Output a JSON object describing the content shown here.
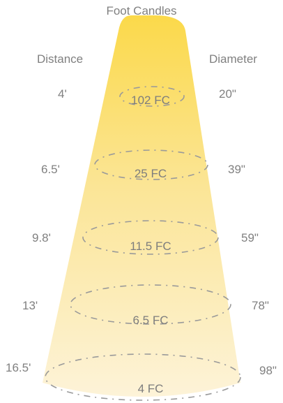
{
  "title": "Foot Candles",
  "headers": {
    "distance": "Distance",
    "diameter": "Diameter"
  },
  "colors": {
    "beam_top": "#fbd94a",
    "beam_bottom": "#fdf1cf",
    "ring_stroke": "#9a9a9a",
    "text": "#808080"
  },
  "levels": [
    {
      "distance": "4'",
      "foot_candles": "102 FC",
      "diameter": "20\""
    },
    {
      "distance": "6.5'",
      "foot_candles": "25 FC",
      "diameter": "39\""
    },
    {
      "distance": "9.8'",
      "foot_candles": "11.5 FC",
      "diameter": "59\""
    },
    {
      "distance": "13'",
      "foot_candles": "6.5 FC",
      "diameter": "78\""
    },
    {
      "distance": "16.5'",
      "foot_candles": "4 FC",
      "diameter": "98\""
    }
  ]
}
